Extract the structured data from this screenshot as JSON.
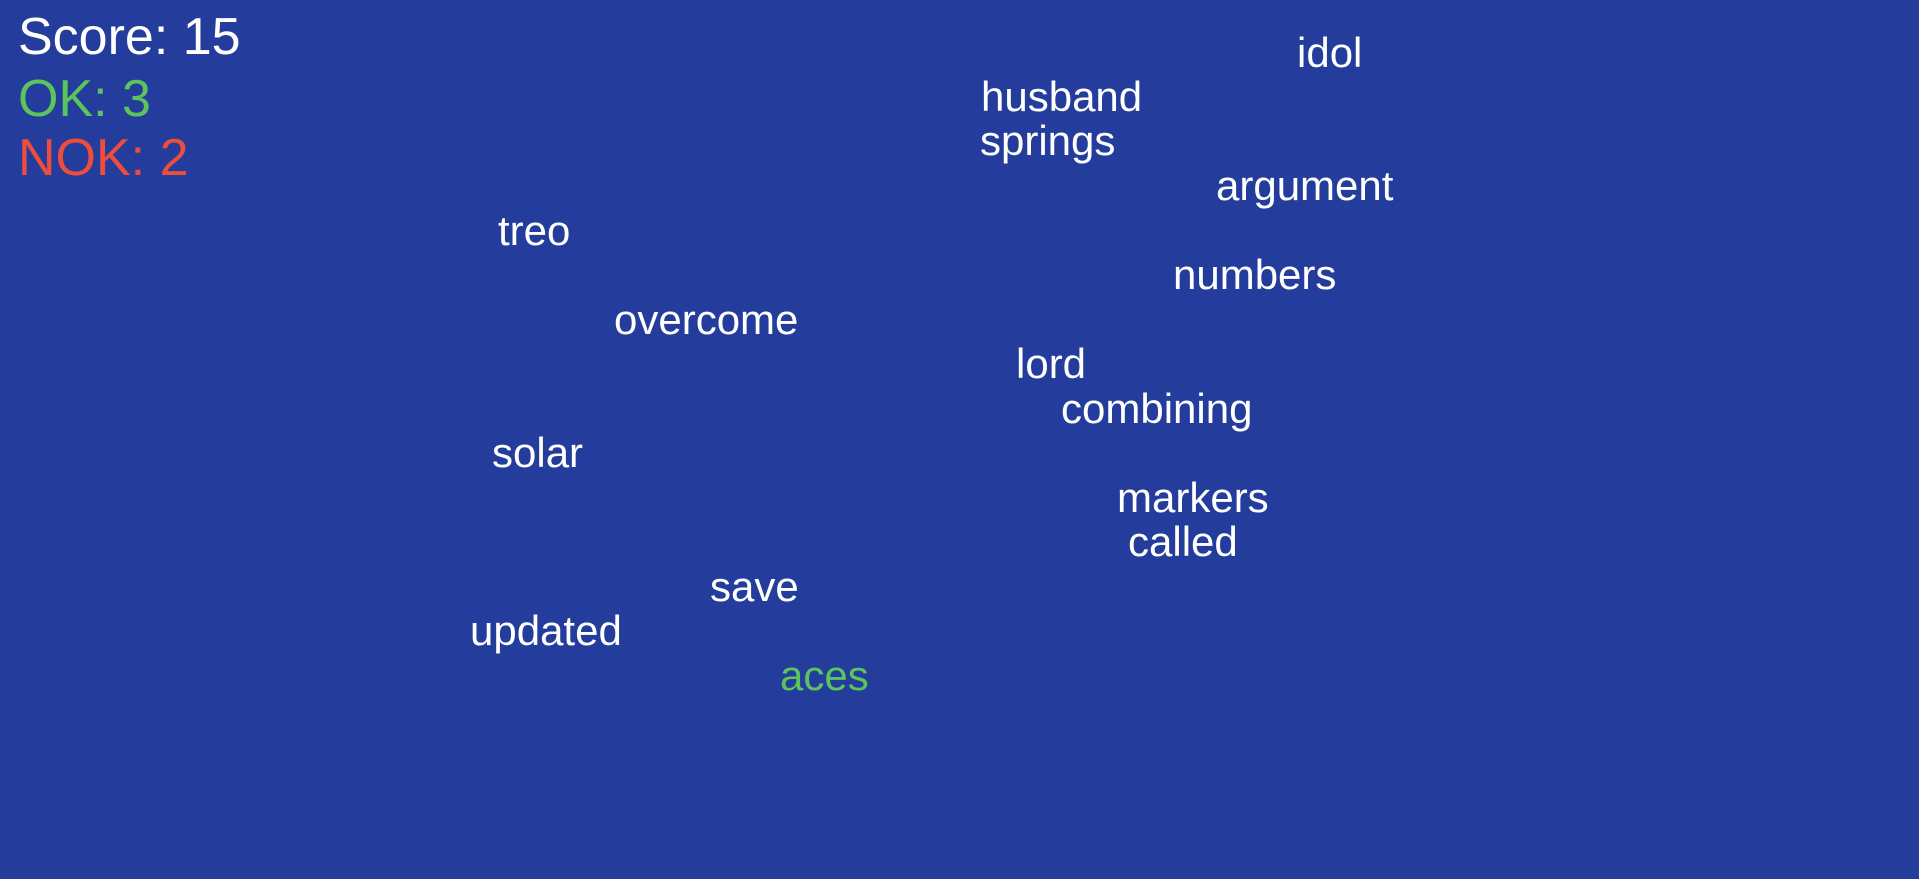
{
  "hud": {
    "score_text": "Score: 15",
    "ok_text": "OK: 3",
    "nok_text": "NOK: 2"
  },
  "words": {
    "idol": "idol",
    "husband": "husband",
    "springs": "springs",
    "argument": "argument",
    "treo": "treo",
    "numbers": "numbers",
    "overcome": "overcome",
    "lord": "lord",
    "combining": "combining",
    "solar": "solar",
    "markers": "markers",
    "called": "called",
    "save": "save",
    "updated": "updated",
    "aces": "aces"
  },
  "colors": {
    "background": "#243d9c",
    "text": "#ffffff",
    "ok": "#5cc45c",
    "nok": "#ef4d3c",
    "typed_word": "#5cc45c"
  }
}
